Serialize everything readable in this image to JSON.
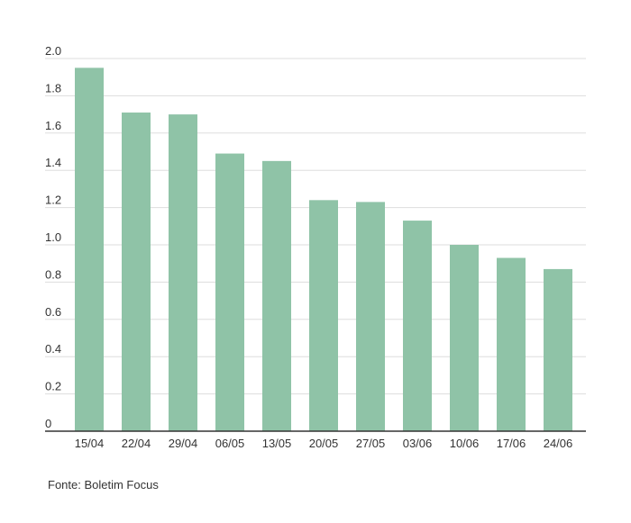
{
  "chart_data": {
    "type": "bar",
    "categories": [
      "15/04",
      "22/04",
      "29/04",
      "06/05",
      "13/05",
      "20/05",
      "27/05",
      "03/06",
      "10/06",
      "17/06",
      "24/06"
    ],
    "values": [
      1.95,
      1.71,
      1.7,
      1.49,
      1.45,
      1.24,
      1.23,
      1.13,
      1.0,
      0.93,
      0.87
    ],
    "title": "",
    "xlabel": "",
    "ylabel": "",
    "ylim": [
      0,
      2.0
    ],
    "yticks": [
      "0",
      "0.2",
      "0.4",
      "0.6",
      "0.8",
      "1.0",
      "1.2",
      "1.4",
      "1.6",
      "1.8",
      "2.0"
    ],
    "grid": true,
    "legend": "none",
    "colors": {
      "bar": "#8fc3a7",
      "grid": "#dddddd",
      "axis": "#333333",
      "text": "#333333"
    }
  },
  "footer": {
    "source": "Fonte: Boletim Focus"
  }
}
